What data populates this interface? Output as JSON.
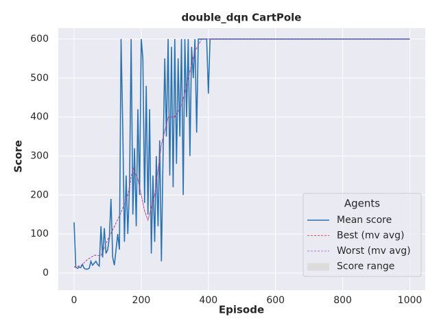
{
  "chart_data": {
    "type": "line",
    "title": "double_dqn CartPole",
    "x_label": "Episode",
    "y_label": "Score",
    "xlim": [
      -47,
      1046
    ],
    "ylim": [
      -44,
      628
    ],
    "xticks": [
      0,
      200,
      400,
      600,
      800,
      1000
    ],
    "yticks": [
      0,
      100,
      200,
      300,
      400,
      500,
      600
    ],
    "grid": true,
    "legend": {
      "title": "Agents",
      "position": "lower right"
    },
    "series": [
      {
        "name": "Mean score",
        "color": "#2a72b0",
        "style": "solid",
        "x": [
          0,
          5,
          10,
          15,
          20,
          25,
          30,
          35,
          40,
          45,
          50,
          55,
          60,
          65,
          70,
          75,
          80,
          85,
          90,
          95,
          100,
          105,
          110,
          115,
          120,
          125,
          130,
          135,
          140,
          145,
          150,
          155,
          160,
          165,
          170,
          175,
          180,
          185,
          190,
          195,
          200,
          205,
          210,
          215,
          220,
          225,
          230,
          235,
          240,
          245,
          250,
          255,
          260,
          265,
          270,
          275,
          280,
          285,
          290,
          295,
          300,
          305,
          310,
          315,
          320,
          325,
          330,
          335,
          340,
          345,
          350,
          355,
          360,
          365,
          370,
          375,
          380,
          385,
          390,
          395,
          400,
          405,
          1000
        ],
        "values": [
          130,
          15,
          12,
          15,
          14,
          22,
          12,
          10,
          10,
          12,
          30,
          20,
          25,
          30,
          22,
          18,
          120,
          40,
          115,
          50,
          60,
          90,
          190,
          40,
          20,
          60,
          100,
          60,
          600,
          370,
          80,
          250,
          100,
          220,
          600,
          150,
          320,
          120,
          420,
          200,
          600,
          550,
          180,
          480,
          150,
          420,
          50,
          250,
          80,
          300,
          120,
          340,
          30,
          300,
          550,
          350,
          600,
          250,
          580,
          220,
          600,
          280,
          550,
          350,
          600,
          200,
          600,
          400,
          600,
          300,
          580,
          500,
          600,
          360,
          600,
          600,
          600,
          600,
          600,
          600,
          460,
          600,
          600
        ]
      },
      {
        "name": "Best (mv avg)",
        "color": "#d62728",
        "style": "dashed",
        "x": [
          0,
          20,
          40,
          60,
          80,
          100,
          120,
          140,
          160,
          175,
          190,
          210,
          220,
          240,
          260,
          280,
          300,
          320,
          340,
          360,
          380,
          1000
        ],
        "values": [
          15,
          18,
          35,
          45,
          45,
          85,
          120,
          155,
          200,
          270,
          240,
          160,
          135,
          200,
          330,
          400,
          400,
          430,
          500,
          570,
          600,
          600
        ]
      },
      {
        "name": "Worst (mv avg)",
        "color": "#9a4fc9",
        "style": "dashed",
        "x": [
          0,
          20,
          40,
          60,
          80,
          100,
          120,
          140,
          160,
          175,
          190,
          210,
          220,
          240,
          260,
          280,
          300,
          320,
          340,
          360,
          380,
          1000
        ],
        "values": [
          16,
          19,
          34,
          46,
          44,
          86,
          118,
          156,
          198,
          268,
          242,
          158,
          136,
          198,
          328,
          398,
          402,
          428,
          498,
          568,
          600,
          600
        ]
      },
      {
        "name": "Score range",
        "color": "#dcdcdc",
        "style": "fill"
      }
    ]
  }
}
